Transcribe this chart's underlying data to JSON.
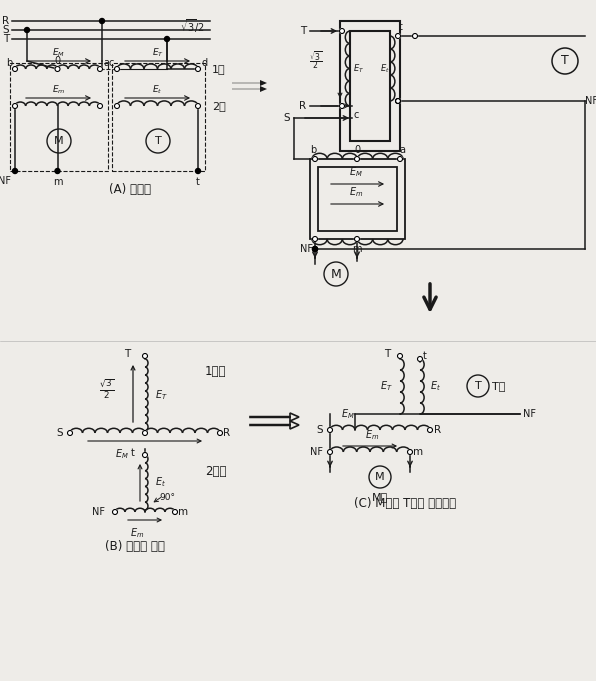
{
  "bg_color": "#eeece8",
  "line_color": "#1a1a1a",
  "label_A": "(A) 결선도",
  "label_B": "(B) 전압의 위상",
  "label_C": "(C) M좌． T좌의 접속표시",
  "label_1cha": "1차",
  "label_2cha": "2차",
  "label_1cha_side": "1차측",
  "label_2cha_side": "2차측",
  "label_T_ja": "T좌",
  "label_M_ja": "M좌"
}
